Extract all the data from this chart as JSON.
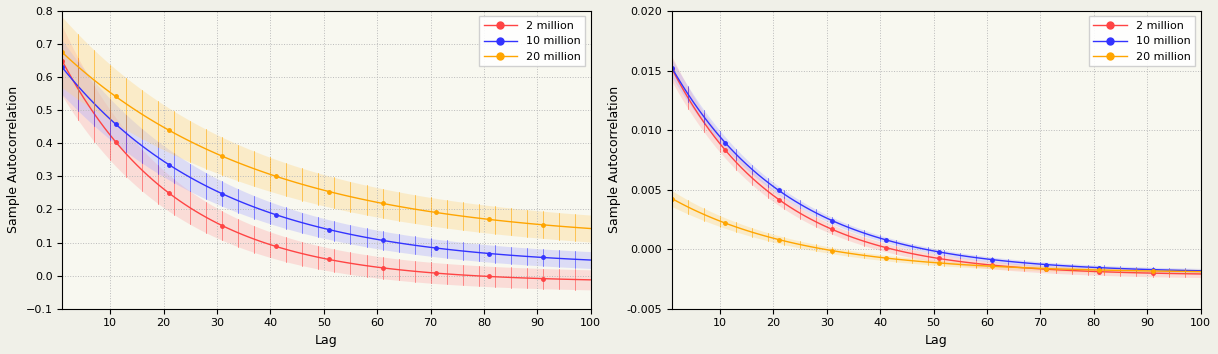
{
  "colors": {
    "2million": "#FF4444",
    "10million": "#3333FF",
    "20million": "#FFA500"
  },
  "colors_fill": {
    "2million": "#FFAAAA",
    "10million": "#AAAAFF",
    "20million": "#FFD580"
  },
  "legend_labels": [
    "2 million",
    "10 million",
    "20 million"
  ],
  "xlabel": "Lag",
  "ylabel": "Sample Autocorrelation",
  "left_ylim": [
    -0.1,
    0.8
  ],
  "right_ylim": [
    -0.005,
    0.02
  ],
  "left_yticks": [
    -0.1,
    0.0,
    0.1,
    0.2,
    0.3,
    0.4,
    0.5,
    0.6,
    0.7,
    0.8
  ],
  "right_yticks": [
    -0.005,
    0.0,
    0.005,
    0.01,
    0.015,
    0.02
  ],
  "xlim": [
    1,
    100
  ],
  "xticks": [
    10,
    20,
    30,
    40,
    50,
    60,
    70,
    80,
    90,
    100
  ],
  "background_color": "#F8F8F0",
  "grid_color": "#BBBBBB",
  "fig_background": "#F0F0E8"
}
